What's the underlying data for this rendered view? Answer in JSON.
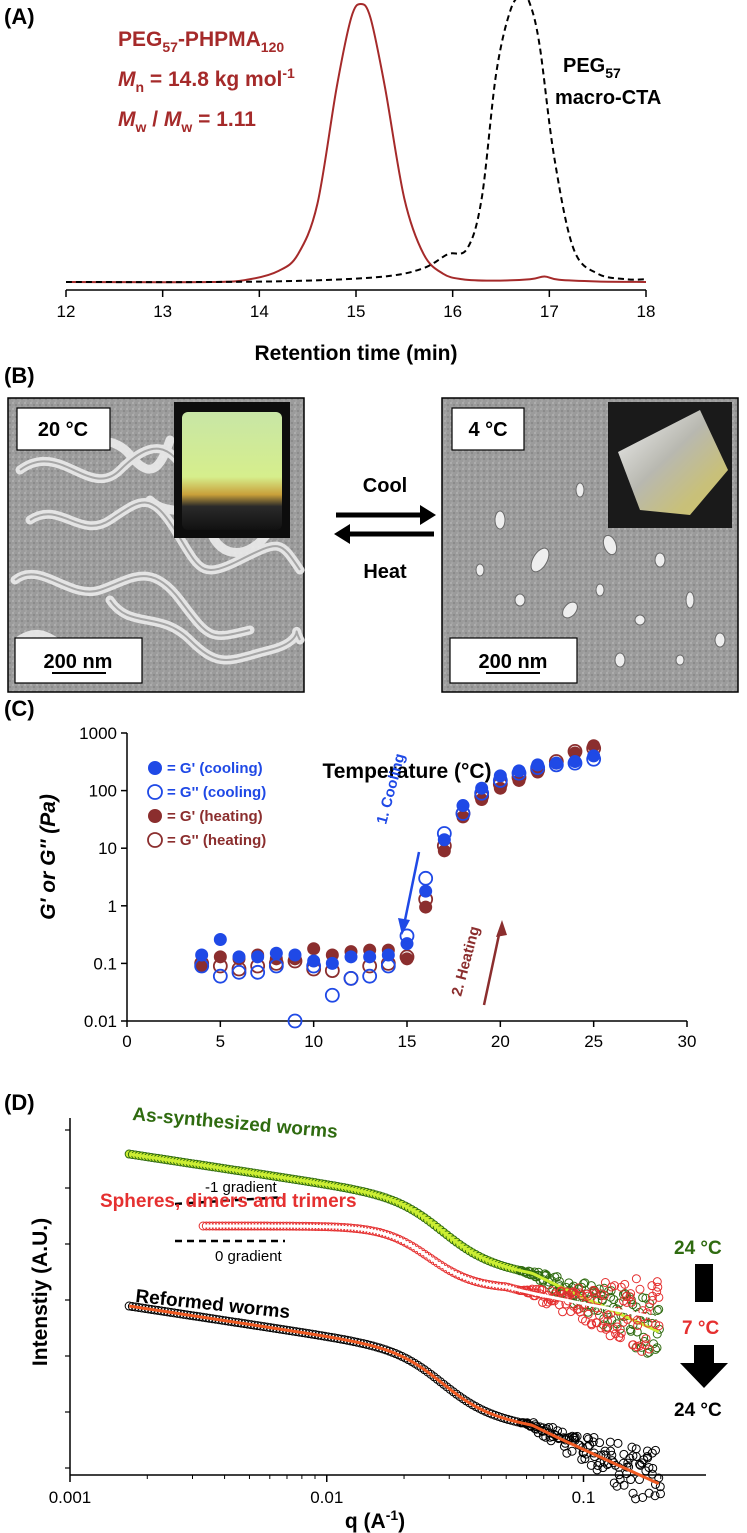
{
  "panels": {
    "a": "(A)",
    "b": "(B)",
    "c": "(C)",
    "d": "(D)"
  },
  "colors": {
    "maroon": "#a52a2a",
    "blue": "#1f49e6",
    "darkred": "#8b2e2e",
    "green": "#2f6b10",
    "lime": "#ccee33",
    "red": "#e53030",
    "orange": "#f05a22"
  },
  "panel_a": {
    "polymer_name": "PEG",
    "polymer_sub1": "57",
    "polymer_mid": "-PHPMA",
    "polymer_sub2": "120",
    "mn_pre": "M",
    "mn_sub": "n",
    "mn_rest": " = 14.8 kg mol",
    "mn_sup": "-1",
    "mw_pre": "M",
    "mw_sub": "w",
    "mw_mid": " / ",
    "mw_pre2": "M",
    "mw_sub2": "w",
    "mw_rest": " = 1.11",
    "cta_line1": "PEG",
    "cta_sub": "57",
    "cta_line2": "macro-CTA"
  },
  "panel_b": {
    "left_temp": "20 °C",
    "right_temp": "4 °C",
    "scale_left": "200 nm",
    "scale_right": "200 nm",
    "cool": "Cool",
    "heat": "Heat"
  },
  "chart_data": [
    {
      "type": "line",
      "panel": "A",
      "xlabel": "Retention time (min)",
      "ylabel": "",
      "xlim": [
        12,
        18
      ],
      "xticks": [
        "12",
        "13",
        "14",
        "15",
        "16",
        "17",
        "18"
      ],
      "series": [
        {
          "name": "PEG57-PHPMA120",
          "style": "solid",
          "x": [
            12.0,
            13.5,
            13.9,
            14.2,
            14.4,
            14.6,
            14.8,
            14.95,
            15.05,
            15.15,
            15.3,
            15.5,
            15.7,
            15.9,
            16.1,
            16.4,
            16.8,
            16.95,
            17.1,
            17.5,
            18.0
          ],
          "y": [
            0.0,
            0.0,
            0.01,
            0.04,
            0.1,
            0.28,
            0.7,
            0.95,
            1.0,
            0.95,
            0.7,
            0.3,
            0.1,
            0.03,
            0.01,
            0.005,
            0.01,
            0.02,
            0.008,
            0.002,
            0.0
          ]
        },
        {
          "name": "PEG57 macro-CTA",
          "style": "dashed",
          "x": [
            12.0,
            13.5,
            14.5,
            15.3,
            15.7,
            15.95,
            16.15,
            16.3,
            16.45,
            16.6,
            16.72,
            16.8,
            16.9,
            17.05,
            17.25,
            17.5,
            17.8,
            18.0
          ],
          "y": [
            0.0,
            0.0,
            0.005,
            0.02,
            0.05,
            0.1,
            0.12,
            0.3,
            0.75,
            0.98,
            1.03,
            1.0,
            0.85,
            0.45,
            0.12,
            0.03,
            0.01,
            0.01
          ]
        }
      ]
    },
    {
      "type": "scatter",
      "panel": "C",
      "xlabel": "Temperature (°C)",
      "ylabel": "G' or G'' (Pa)",
      "xlim": [
        0,
        30
      ],
      "ylim": [
        0.01,
        1000
      ],
      "yscale": "log",
      "xticks": [
        "0",
        "5",
        "10",
        "15",
        "20",
        "25",
        "30"
      ],
      "yticks": [
        "0.01",
        "0.1",
        "1",
        "10",
        "100",
        "1000"
      ],
      "legend": [
        "= G' (cooling)",
        "= G'' (cooling)",
        "= G' (heating)",
        "= G'' (heating)"
      ],
      "annotations": [
        "1. Cooling",
        "2. Heating"
      ],
      "series": [
        {
          "name": "G' (cooling)",
          "marker": "filled-blue",
          "x": [
            4,
            5,
            6,
            7,
            8,
            9,
            10,
            11,
            12,
            13,
            14,
            15,
            16,
            17,
            18,
            19,
            20,
            21,
            22,
            23,
            24,
            25
          ],
          "y": [
            0.14,
            0.26,
            0.13,
            0.13,
            0.15,
            0.14,
            0.11,
            0.1,
            0.13,
            0.13,
            0.14,
            0.22,
            1.8,
            14,
            55,
            110,
            180,
            220,
            280,
            300,
            320,
            400
          ]
        },
        {
          "name": "G'' (cooling)",
          "marker": "open-blue",
          "x": [
            4,
            5,
            6,
            7,
            8,
            9,
            10,
            11,
            12,
            13,
            14,
            15,
            16,
            17,
            18,
            19,
            20,
            21,
            22,
            23,
            24,
            25
          ],
          "y": [
            0.09,
            0.06,
            0.07,
            0.07,
            0.09,
            0.01,
            0.09,
            0.028,
            0.055,
            0.06,
            0.09,
            0.3,
            3.0,
            18,
            40,
            90,
            150,
            200,
            250,
            280,
            300,
            350
          ]
        },
        {
          "name": "G' (heating)",
          "marker": "filled-darkred",
          "x": [
            4,
            5,
            6,
            7,
            8,
            9,
            10,
            11,
            12,
            13,
            14,
            15,
            16,
            17,
            18,
            19,
            20,
            21,
            22,
            23,
            24,
            25
          ],
          "y": [
            0.09,
            0.13,
            0.12,
            0.14,
            0.12,
            0.12,
            0.18,
            0.14,
            0.16,
            0.17,
            0.17,
            0.12,
            0.95,
            9,
            35,
            70,
            110,
            150,
            210,
            300,
            450,
            600
          ]
        },
        {
          "name": "G'' (heating)",
          "marker": "open-darkred",
          "x": [
            4,
            5,
            6,
            7,
            8,
            9,
            10,
            11,
            12,
            13,
            14,
            15,
            16,
            17,
            18,
            19,
            20,
            21,
            22,
            23,
            24,
            25
          ],
          "y": [
            0.1,
            0.09,
            0.08,
            0.09,
            0.1,
            0.11,
            0.08,
            0.075,
            0.055,
            0.09,
            0.1,
            0.13,
            1.3,
            11,
            40,
            80,
            130,
            170,
            230,
            320,
            480,
            540
          ]
        }
      ]
    },
    {
      "type": "scatter",
      "panel": "D",
      "xlabel": "q (A",
      "xlabel_sup": "-1",
      "xlabel_end": ")",
      "ylabel": "Intenstiy (A.U.)",
      "xscale": "log",
      "xlim": [
        0.001,
        0.3
      ],
      "xticks": [
        "0.001",
        "0.01",
        "0.1"
      ],
      "annotations": {
        "top": "As-synthesized worms",
        "mid": "Spheres, dimers and trimers",
        "bot": "Reformed worms",
        "grad1": "-1 gradient",
        "grad0": "0 gradient",
        "t1": "24 °C",
        "t2": "7 °C",
        "t3": "24 °C"
      },
      "series": [
        {
          "name": "As-synthesized worms",
          "x_range": [
            0.0017,
            0.2
          ],
          "offset": 0,
          "style": "green-open-circles with lime fit"
        },
        {
          "name": "Spheres, dimers and trimers",
          "x_range": [
            0.0033,
            0.2
          ],
          "offset": 1,
          "style": "red-open-circles with white fit"
        },
        {
          "name": "Reformed worms",
          "x_range": [
            0.0017,
            0.2
          ],
          "offset": 2,
          "style": "black-open-circles with orange fit"
        }
      ]
    }
  ]
}
